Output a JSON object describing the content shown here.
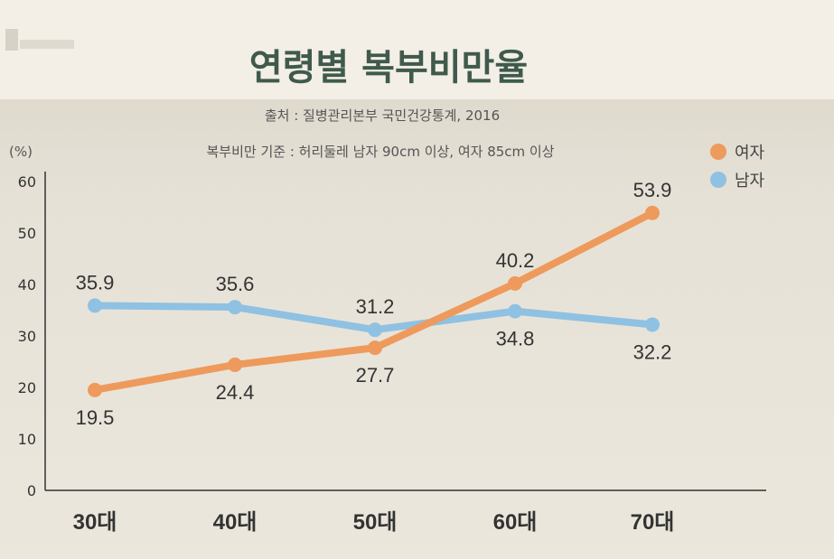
{
  "chart_data": {
    "type": "line",
    "title": "연령별 복부비만율",
    "source": "출처 : 질병관리본부 국민건강통계, 2016",
    "criteria": "복부비만 기준 : 허리둘레 남자 90cm 이상, 여자 85cm 이상",
    "ylabel": "(%)",
    "xlabel": "",
    "ylim": [
      0,
      60
    ],
    "yticks": [
      "0",
      "10",
      "20",
      "30",
      "40",
      "50",
      "60"
    ],
    "categories": [
      "30대",
      "40대",
      "50대",
      "60대",
      "70대"
    ],
    "legend_position": "top-right",
    "series": [
      {
        "name": "여자",
        "color": "#ee9a5c",
        "values": [
          19.5,
          24.4,
          27.7,
          40.2,
          53.9
        ],
        "labels": [
          "19.5",
          "24.4",
          "27.7",
          "40.2",
          "53.9"
        ],
        "label_placement": [
          "below",
          "below",
          "below",
          "above",
          "above"
        ]
      },
      {
        "name": "남자",
        "color": "#8fc1e3",
        "values": [
          35.9,
          35.6,
          31.2,
          34.8,
          32.2
        ],
        "labels": [
          "35.9",
          "35.6",
          "31.2",
          "34.8",
          "32.2"
        ],
        "label_placement": [
          "above",
          "above",
          "above",
          "below",
          "below"
        ]
      }
    ]
  },
  "colors": {
    "header_bg": "#f3efe6",
    "plot_bg": "#e8e3d8",
    "title": "#3f5a4c",
    "text": "#555555",
    "axis": "#333333"
  }
}
